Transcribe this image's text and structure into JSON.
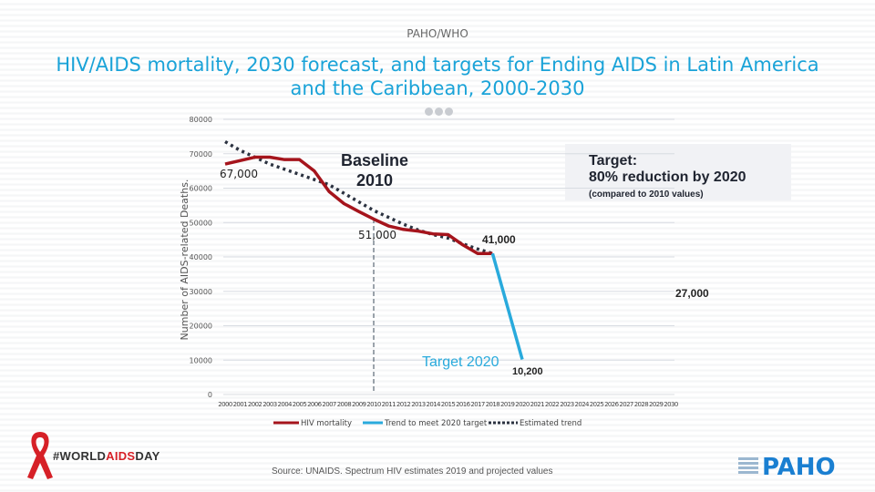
{
  "header": {
    "org": "PAHO/WHO",
    "title_line1": "HIV/AIDS mortality, 2030 forecast, and targets for Ending AIDS in Latin America",
    "title_line2": "and the Caribbean, 2000-2030"
  },
  "footer": {
    "source": "Source: UNAIDS. Spectrum HIV estimates 2019 and projected values",
    "campaign_prefix": "#WORLD",
    "campaign_highlight": "AIDS",
    "campaign_suffix": "DAY",
    "logo_text": "PAHO"
  },
  "colors": {
    "hiv_mortality": "#a5141c",
    "trend_target": "#29aadc",
    "estimated_trend": "#2b3240",
    "title": "#1aa3d8",
    "ribbon": "#d62027",
    "paho_blue": "#1a7fd1"
  },
  "chart_data": {
    "type": "line",
    "title": "HIV/AIDS mortality, 2030 forecast, and targets for Ending AIDS in Latin America and the Caribbean, 2000-2030",
    "xlabel": "",
    "ylabel": "Number of AIDS-related Deaths.",
    "x": [
      2000,
      2001,
      2002,
      2003,
      2004,
      2005,
      2006,
      2007,
      2008,
      2009,
      2010,
      2011,
      2012,
      2013,
      2014,
      2015,
      2016,
      2017,
      2018,
      2019,
      2020,
      2021,
      2022,
      2023,
      2024,
      2025,
      2026,
      2027,
      2028,
      2029,
      2030
    ],
    "xlim": [
      2000,
      2030
    ],
    "ylim": [
      0,
      80000
    ],
    "yticks": [
      0,
      10000,
      20000,
      30000,
      40000,
      50000,
      60000,
      70000,
      80000
    ],
    "grid": true,
    "legend_position": "bottom",
    "series": [
      {
        "name": "HIV mortality",
        "style": "solid",
        "color": "#a5141c",
        "x": [
          2000,
          2001,
          2002,
          2003,
          2004,
          2005,
          2006,
          2007,
          2008,
          2009,
          2010,
          2011,
          2012,
          2013,
          2014,
          2015,
          2016,
          2017,
          2018
        ],
        "values": [
          67000,
          68000,
          69000,
          69000,
          68300,
          68300,
          65000,
          59000,
          55500,
          53200,
          51000,
          49000,
          48000,
          47500,
          46700,
          46500,
          43500,
          41000,
          41000
        ]
      },
      {
        "name": "Trend to meet 2020 target",
        "style": "solid",
        "color": "#29aadc",
        "x": [
          2018,
          2020
        ],
        "values": [
          41000,
          10200
        ]
      },
      {
        "name": "Estimated trend",
        "style": "dotted",
        "color": "#2b3240",
        "x": [
          2000,
          2001,
          2002,
          2003,
          2004,
          2005,
          2006,
          2007,
          2008,
          2009,
          2010,
          2011,
          2012,
          2013,
          2014,
          2015,
          2016,
          2017,
          2018
        ],
        "values": [
          73500,
          71000,
          69000,
          67000,
          65500,
          64000,
          62500,
          61000,
          58500,
          56000,
          53500,
          51500,
          49500,
          47800,
          46500,
          45500,
          43800,
          42300,
          41000
        ]
      }
    ],
    "annotations": [
      {
        "text": "67,000",
        "x": 2000,
        "y": 67000
      },
      {
        "text": "51,000",
        "x": 2010,
        "y": 51000
      },
      {
        "text": "41,000",
        "x": 2018,
        "y": 41000
      },
      {
        "text": "10,200",
        "x": 2020,
        "y": 10200
      },
      {
        "text": "27,000",
        "x": 2030,
        "y": 27000
      },
      {
        "text": "Baseline",
        "line2": "2010"
      },
      {
        "text": "Target 2020"
      },
      {
        "text": "Target:",
        "line2": "80% reduction by 2020",
        "line3": "(compared to 2010 values)"
      }
    ],
    "baseline_year": 2010
  }
}
